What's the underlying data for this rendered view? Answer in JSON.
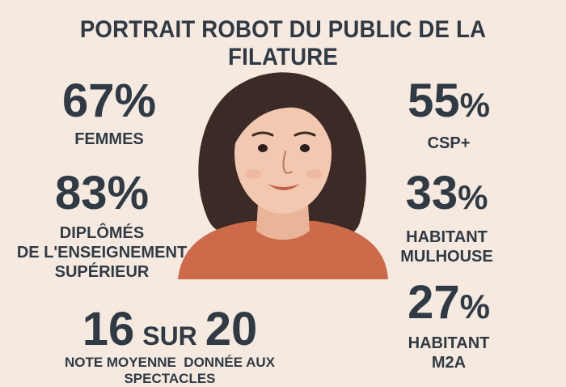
{
  "title": "PORTRAIT ROBOT DU PUBLIC DE LA FILATURE",
  "stats": {
    "femmes": {
      "value": "67",
      "unit": "%",
      "label": "FEMMES"
    },
    "diplomes": {
      "value": "83",
      "unit": "%",
      "label_line1": "DIPLÔMÉS",
      "label_line2": "DE L'ENSEIGNEMENT",
      "label_line3": "SUPÉRIEUR"
    },
    "csp": {
      "value": "55",
      "unit": "%",
      "label": "CSP+"
    },
    "mulhouse": {
      "value": "33",
      "unit": "%",
      "label_line1": "HABITANT",
      "label_line2": "MULHOUSE"
    },
    "m2a": {
      "value": "27",
      "unit": "%",
      "label_line1": "HABITANT",
      "label_line2": "M2A"
    },
    "note": {
      "score": "16",
      "sur": "SUR",
      "max": "20",
      "label_line1": "NOTE MOYENNE  DONNÉE AUX",
      "label_line2": "SPECTACLES"
    }
  },
  "colors": {
    "background": "#f6e9df",
    "text": "#2f3a44",
    "shirt": "#cc6a49",
    "hair": "#3b2a26",
    "skin": "#f3c8b0"
  },
  "portrait_icon": "woman-portrait-icon"
}
